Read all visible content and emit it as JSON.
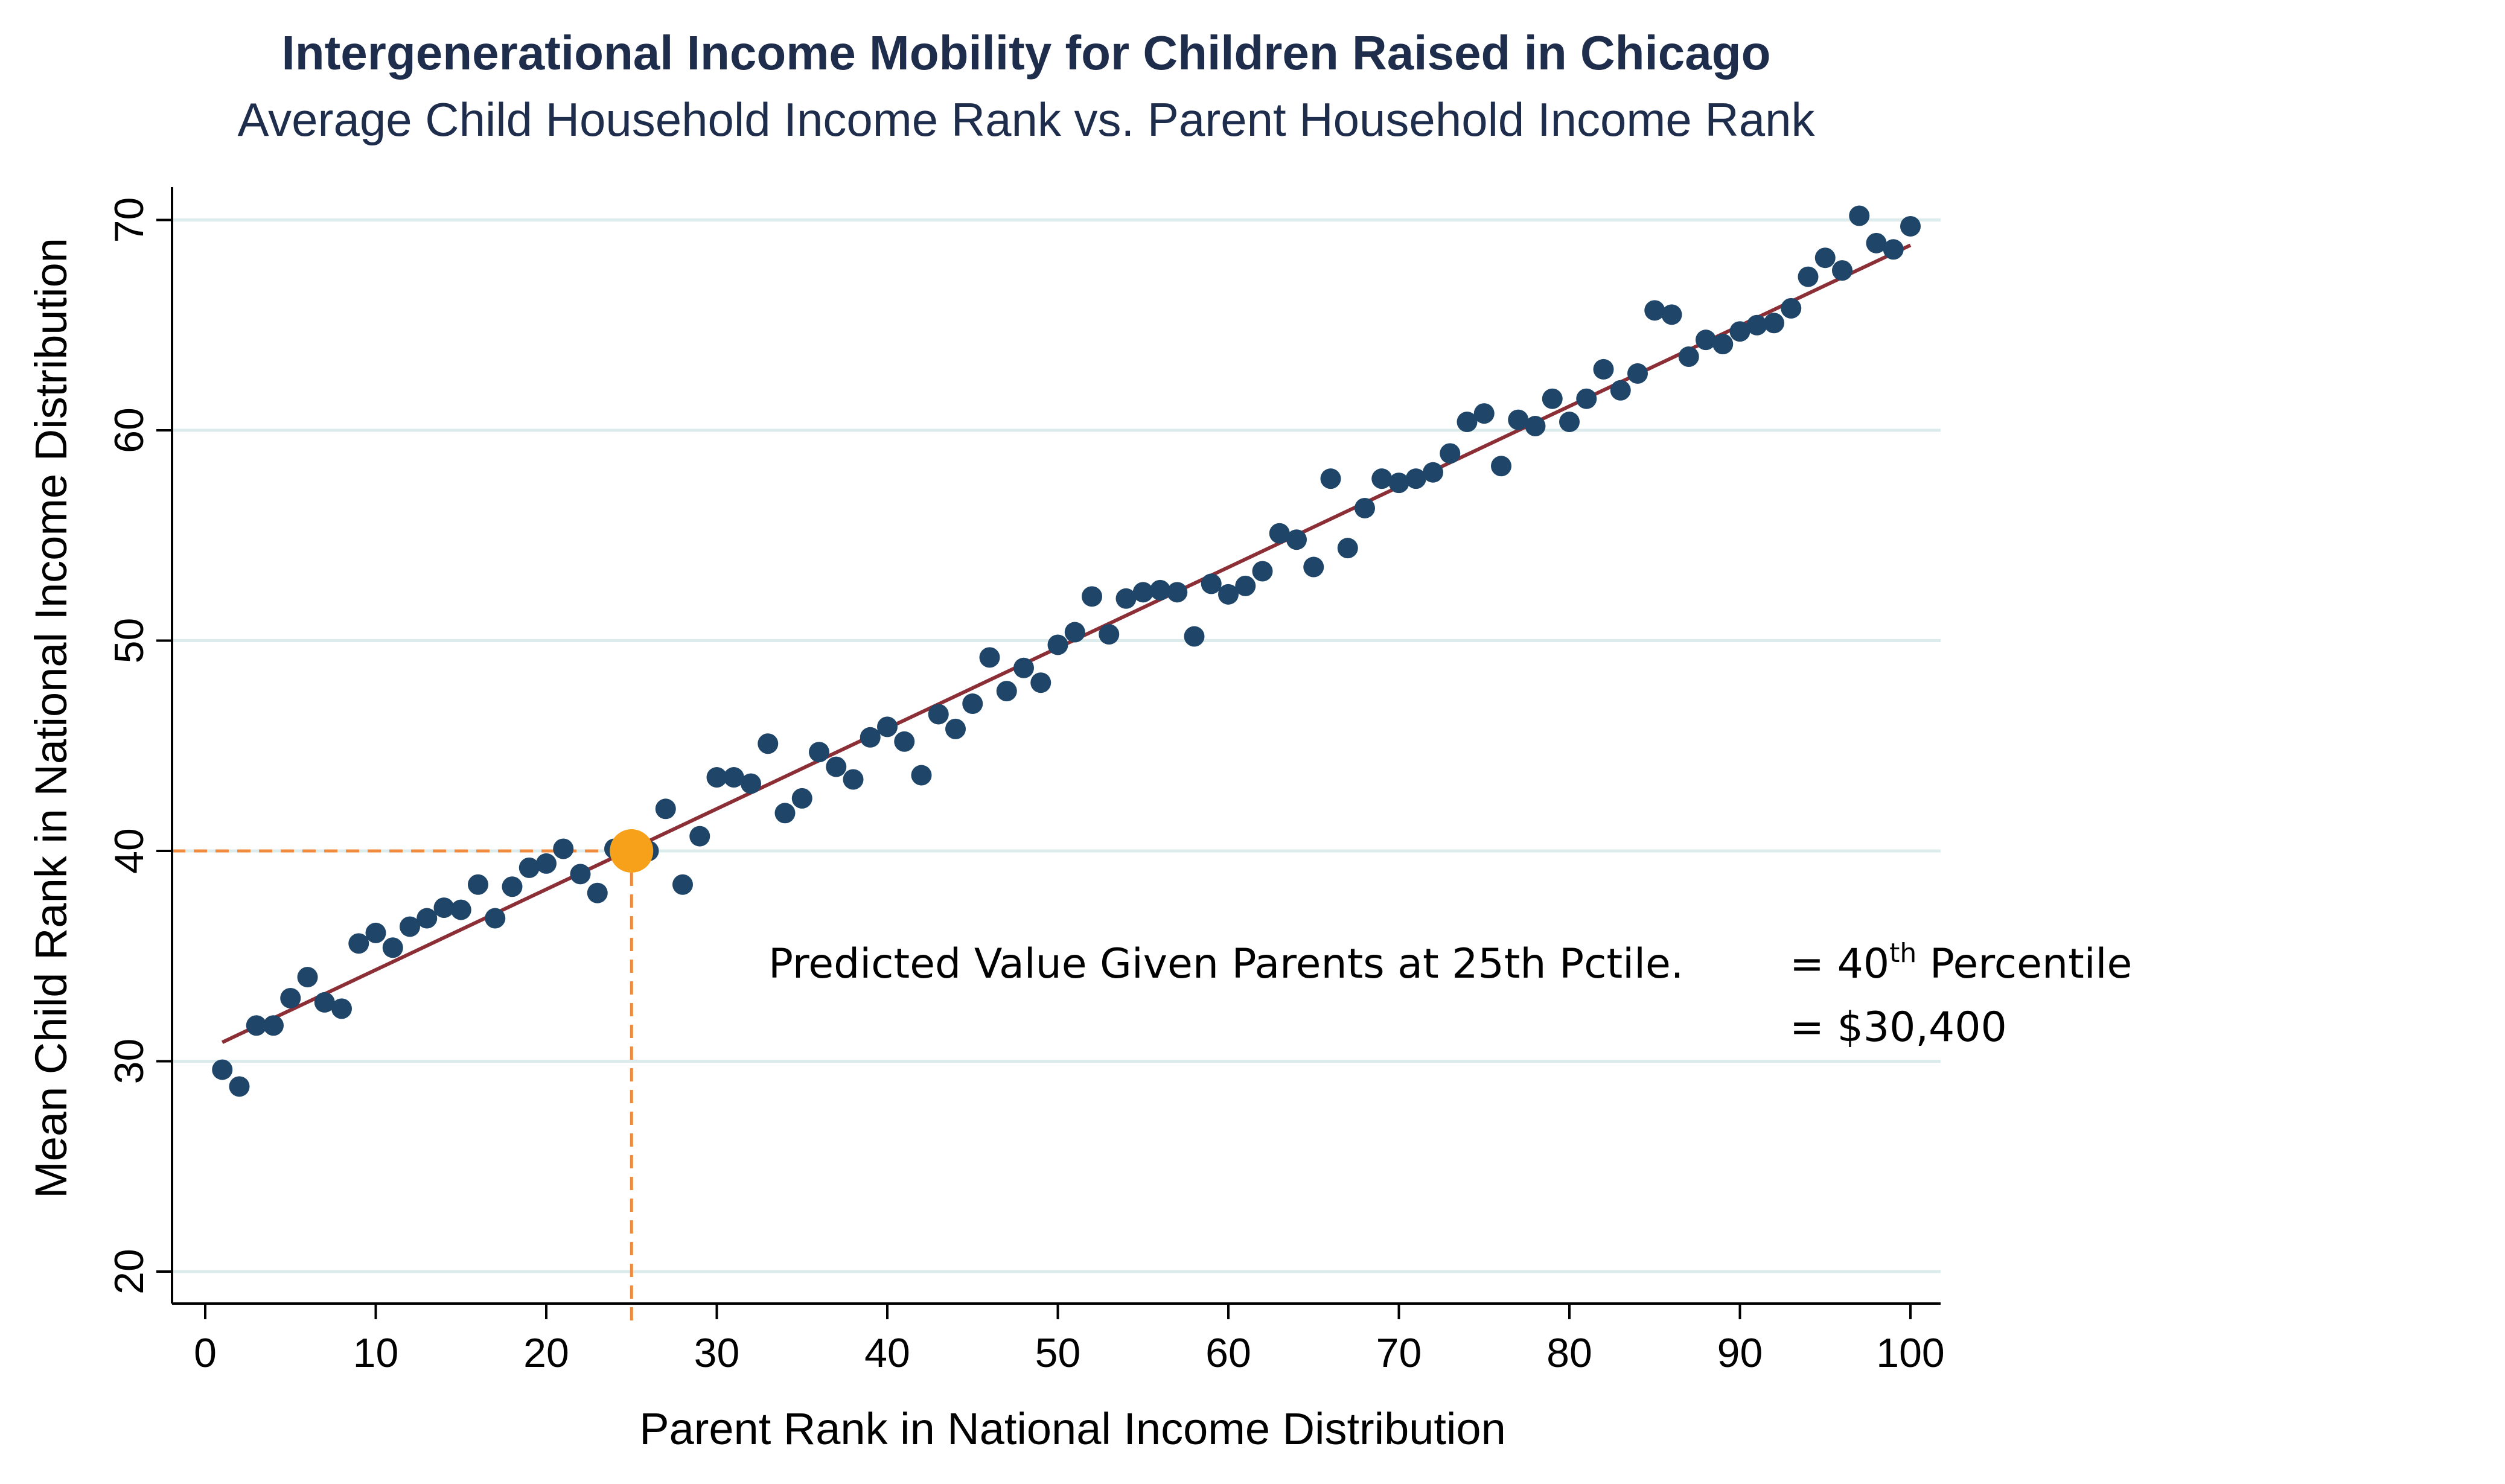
{
  "chart_data": {
    "type": "scatter",
    "title": "Intergenerational Income Mobility for Children Raised in Chicago",
    "subtitle": "Average Child Household Income Rank vs. Parent Household Income Rank",
    "xlabel": "Parent Rank in National Income Distribution",
    "ylabel": "Mean Child Rank in National Income Distribution",
    "xlim": [
      -2,
      102
    ],
    "ylim": [
      18.5,
      71.5
    ],
    "x_ticks": [
      "0",
      "10",
      "20",
      "30",
      "40",
      "50",
      "60",
      "70",
      "80",
      "90",
      "100"
    ],
    "y_ticks": [
      "20",
      "30",
      "40",
      "50",
      "60",
      "70"
    ],
    "grid": "horizontal",
    "colors": {
      "points": "#1f4568",
      "fit_line": "#8b2e35",
      "highlight": "#f7a11a",
      "guide": "#f08a3c",
      "grid": "#dcebeb"
    },
    "x": [
      1,
      2,
      3,
      4,
      5,
      6,
      7,
      8,
      9,
      10,
      11,
      12,
      13,
      14,
      15,
      16,
      17,
      18,
      19,
      20,
      21,
      22,
      23,
      24,
      25,
      26,
      27,
      28,
      29,
      30,
      31,
      32,
      33,
      34,
      35,
      36,
      37,
      38,
      39,
      40,
      41,
      42,
      43,
      44,
      45,
      46,
      47,
      48,
      49,
      50,
      51,
      52,
      53,
      54,
      55,
      56,
      57,
      58,
      59,
      60,
      61,
      62,
      63,
      64,
      65,
      66,
      67,
      68,
      69,
      70,
      71,
      72,
      73,
      74,
      75,
      76,
      77,
      78,
      79,
      80,
      81,
      82,
      83,
      84,
      85,
      86,
      87,
      88,
      89,
      90,
      91,
      92,
      93,
      94,
      95,
      96,
      97,
      98,
      99,
      100
    ],
    "y": [
      29.6,
      28.8,
      31.7,
      31.7,
      33.0,
      34.0,
      32.8,
      32.5,
      35.6,
      36.1,
      35.4,
      36.4,
      36.8,
      37.3,
      37.2,
      38.4,
      36.8,
      38.3,
      39.2,
      39.4,
      40.1,
      38.9,
      38.0,
      40.1,
      40.0,
      40.0,
      42.0,
      38.4,
      40.7,
      43.5,
      43.5,
      43.2,
      45.1,
      41.8,
      42.5,
      44.7,
      44.0,
      43.4,
      45.4,
      45.9,
      45.2,
      43.6,
      46.5,
      45.8,
      47.0,
      49.2,
      47.6,
      48.7,
      48.0,
      49.8,
      50.4,
      52.1,
      50.3,
      52.0,
      52.3,
      52.4,
      52.3,
      50.2,
      52.7,
      52.2,
      52.6,
      53.3,
      55.1,
      54.8,
      53.5,
      57.7,
      54.4,
      56.3,
      57.7,
      57.5,
      57.7,
      58.0,
      58.9,
      60.4,
      60.8,
      58.3,
      60.5,
      60.2,
      61.5,
      60.4,
      61.5,
      62.9,
      61.9,
      62.7,
      65.7,
      65.5,
      63.5,
      64.3,
      64.1,
      64.7,
      65.0,
      65.1,
      65.8,
      67.3,
      68.2,
      67.6,
      70.2,
      68.9,
      68.6,
      69.7
    ],
    "fit_line": {
      "x": [
        1,
        100
      ],
      "y": [
        30.9,
        68.8
      ]
    },
    "highlight": {
      "x": 25,
      "y": 40.0
    },
    "annotation": {
      "text": "Predicted Value Given Parents at 25th Pctile.",
      "pct_prefix": "= 40",
      "pct_sup": "th",
      "pct_suffix": " Percentile",
      "dollar": "= $30,400"
    }
  }
}
